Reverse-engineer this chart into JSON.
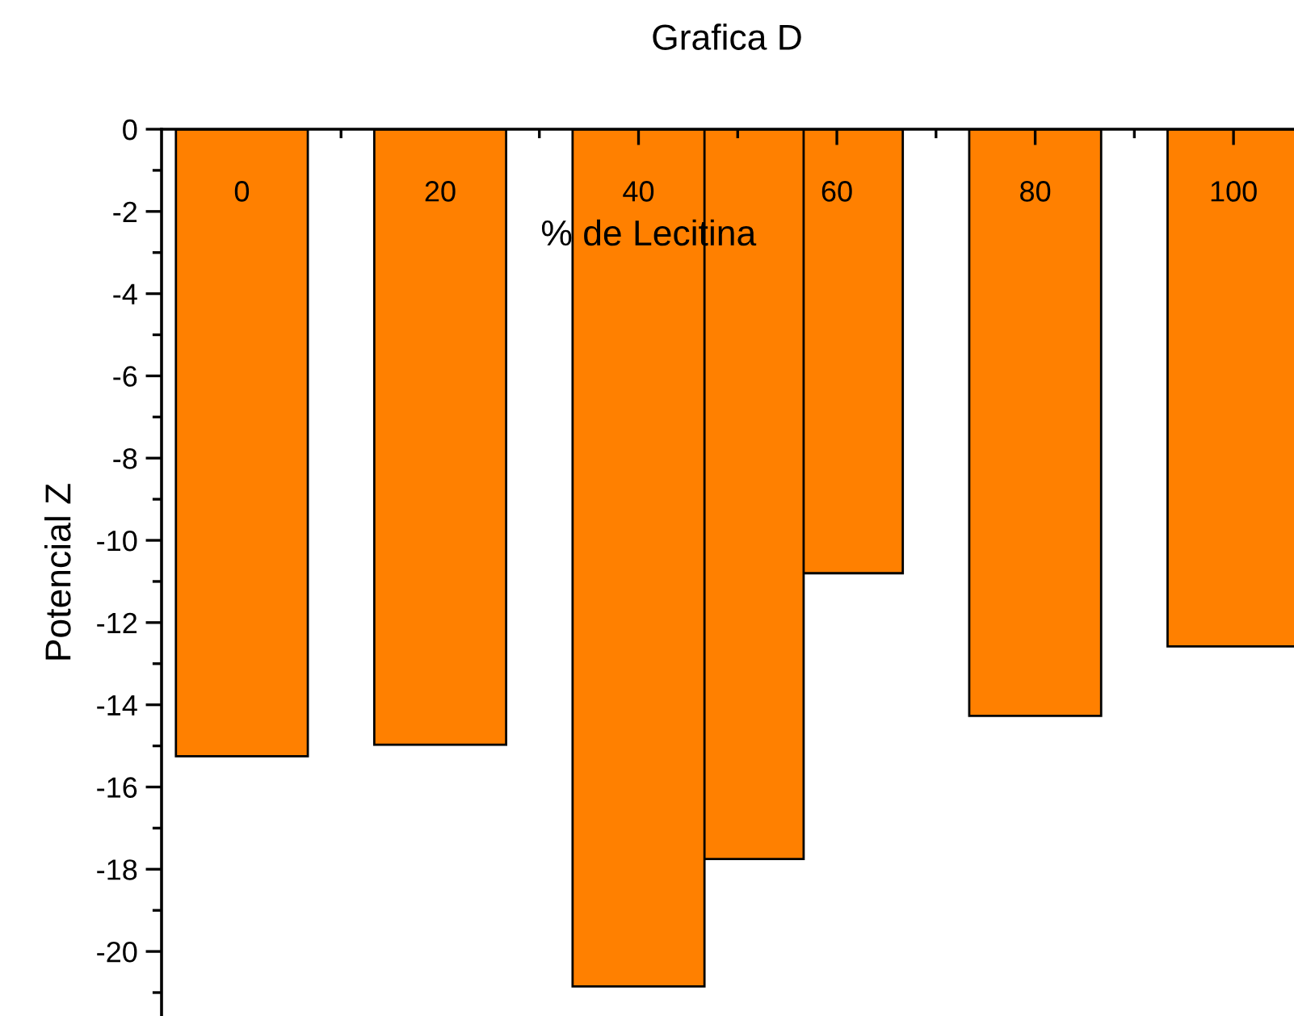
{
  "chart_data": {
    "type": "bar",
    "title": "Grafica D",
    "xlabel": "% de Lecitina",
    "ylabel": "Potencial Z",
    "x": [
      0,
      20,
      40,
      50,
      60,
      80,
      100
    ],
    "values": [
      -15.25,
      -14.97,
      -20.85,
      -17.75,
      -10.8,
      -14.27,
      -12.58
    ],
    "color": "#ff8000",
    "xlim": [
      -8.1,
      106.1
    ],
    "ylim": [
      -21.57,
      0
    ],
    "xticks": [
      0,
      {
        "value": 10,
        "label": null
      },
      20,
      {
        "value": 30,
        "label": null
      },
      40,
      {
        "value": 50,
        "label": null
      },
      60,
      {
        "value": 70,
        "label": null
      },
      80,
      {
        "value": 90,
        "label": null
      },
      100
    ],
    "yticks": [
      {
        "value": -20,
        "label": "-20"
      },
      {
        "value": -21,
        "label": null
      },
      {
        "value": -19,
        "label": null
      },
      {
        "value": -18,
        "label": "-18"
      },
      {
        "value": -17,
        "label": null
      },
      {
        "value": -16,
        "label": "-16"
      },
      {
        "value": -15,
        "label": null
      },
      {
        "value": -14,
        "label": "-14"
      },
      {
        "value": -13,
        "label": null
      },
      {
        "value": -12,
        "label": "-12"
      },
      {
        "value": -11,
        "label": null
      },
      {
        "value": -10,
        "label": "-10"
      },
      {
        "value": -9,
        "label": null
      },
      {
        "value": -8,
        "label": "-8"
      },
      {
        "value": -7,
        "label": null
      },
      {
        "value": -6,
        "label": "-6"
      },
      {
        "value": -5,
        "label": null
      },
      {
        "value": -4,
        "label": "-4"
      },
      {
        "value": -3,
        "label": null
      },
      {
        "value": -2,
        "label": "-2"
      },
      {
        "value": -1,
        "label": null
      },
      0
    ],
    "grid": false,
    "legend": false
  }
}
